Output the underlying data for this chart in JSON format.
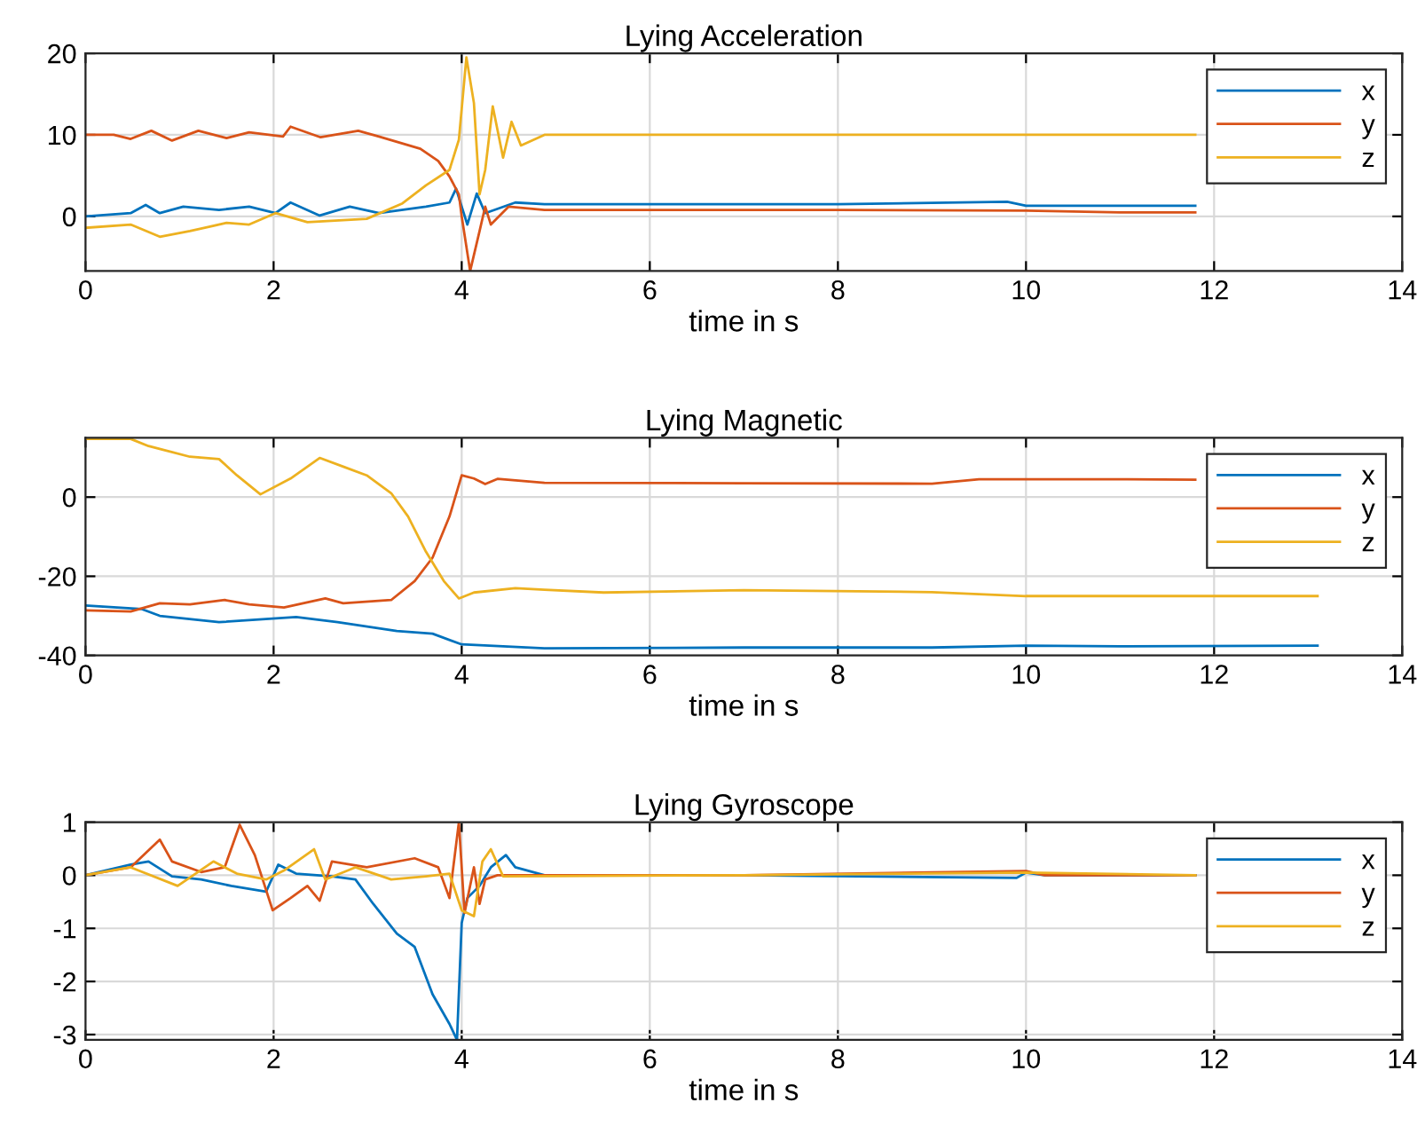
{
  "chart_data": [
    {
      "type": "line",
      "title": "Lying Acceleration",
      "xlabel": "time in s",
      "xlim": [
        0,
        14
      ],
      "xticks": [
        0,
        2,
        4,
        6,
        8,
        10,
        12,
        14
      ],
      "ylim": [
        -6.7,
        20
      ],
      "yticks": [
        0,
        10,
        20
      ],
      "grid": true,
      "legend": "top right",
      "line_style": "solid",
      "marker": "none",
      "series": [
        {
          "name": "x",
          "color": "#0072bd",
          "x": [
            0,
            0.48,
            0.64,
            0.79,
            1.04,
            1.42,
            1.74,
            2.02,
            2.18,
            2.49,
            2.81,
            3.12,
            3.62,
            3.87,
            3.94,
            4.06,
            4.16,
            4.25,
            4.57,
            4.88,
            6,
            8,
            9.8,
            10,
            11,
            11.8
          ],
          "values": [
            0,
            0.4,
            1.4,
            0.4,
            1.2,
            0.8,
            1.2,
            0.4,
            1.7,
            0.1,
            1.2,
            0.4,
            1.2,
            1.7,
            3.4,
            -1,
            2.8,
            0.4,
            1.7,
            1.5,
            1.5,
            1.5,
            1.8,
            1.3,
            1.3,
            1.3
          ]
        },
        {
          "name": "y",
          "color": "#d95319",
          "x": [
            0,
            0.3,
            0.48,
            0.7,
            0.92,
            1.2,
            1.5,
            1.74,
            2.1,
            2.18,
            2.5,
            2.9,
            3.12,
            3.56,
            3.75,
            3.87,
            3.97,
            4.0,
            4.09,
            4.19,
            4.25,
            4.31,
            4.5,
            4.88,
            6,
            8,
            10,
            11,
            11.8
          ],
          "values": [
            10,
            10,
            9.5,
            10.5,
            9.3,
            10.5,
            9.6,
            10.3,
            9.8,
            11,
            9.7,
            10.5,
            9.8,
            8.3,
            6.8,
            4.9,
            2.7,
            0,
            -6.7,
            -1.8,
            1.2,
            -1,
            1.2,
            0.8,
            0.8,
            0.8,
            0.7,
            0.5,
            0.5
          ]
        },
        {
          "name": "z",
          "color": "#edb120",
          "x": [
            0,
            0.48,
            0.79,
            1.11,
            1.5,
            1.74,
            2.02,
            2.36,
            2.99,
            3.37,
            3.62,
            3.87,
            3.97,
            4.05,
            4.13,
            4.19,
            4.25,
            4.33,
            4.44,
            4.53,
            4.63,
            4.88,
            6,
            8,
            10,
            11.8
          ],
          "values": [
            -1.4,
            -1,
            -2.5,
            -1.8,
            -0.8,
            -1,
            0.4,
            -0.7,
            -0.3,
            1.6,
            3.8,
            5.7,
            9.4,
            19.5,
            13.9,
            2.7,
            5.7,
            13.5,
            7.2,
            11.6,
            8.7,
            10,
            10,
            10,
            10,
            10
          ]
        }
      ]
    },
    {
      "type": "line",
      "title": "Lying Magnetic",
      "xlabel": "time in s",
      "xlim": [
        0,
        14
      ],
      "xticks": [
        0,
        2,
        4,
        6,
        8,
        10,
        12,
        14
      ],
      "ylim": [
        -40,
        15
      ],
      "yticks": [
        -40,
        -20,
        0
      ],
      "grid": true,
      "legend": "top right",
      "line_style": "solid",
      "marker": "none",
      "series": [
        {
          "name": "x",
          "color": "#0072bd",
          "x": [
            0,
            0.6,
            0.79,
            1.42,
            2.24,
            2.68,
            3.31,
            3.69,
            4.0,
            4.88,
            7,
            9,
            10,
            11,
            13.1
          ],
          "values": [
            -27.4,
            -28.3,
            -30,
            -31.6,
            -30.3,
            -31.6,
            -33.8,
            -34.5,
            -37.2,
            -38.2,
            -38,
            -38,
            -37.5,
            -37.7,
            -37.5
          ]
        },
        {
          "name": "y",
          "color": "#d95319",
          "x": [
            0,
            0.48,
            0.79,
            1.11,
            1.48,
            1.74,
            2.11,
            2.55,
            2.74,
            3.25,
            3.5,
            3.69,
            3.87,
            4.0,
            4.13,
            4.25,
            4.38,
            4.88,
            7,
            9,
            9.5,
            11,
            11.8
          ],
          "values": [
            -28.6,
            -28.9,
            -26.8,
            -27.1,
            -26,
            -27.1,
            -27.9,
            -25.6,
            -26.8,
            -26,
            -21.2,
            -15.3,
            -4.9,
            5.5,
            4.7,
            3.3,
            4.6,
            3.6,
            3.5,
            3.4,
            4.5,
            4.5,
            4.4
          ]
        },
        {
          "name": "z",
          "color": "#edb120",
          "x": [
            0,
            0.48,
            0.67,
            1.11,
            1.42,
            1.61,
            1.86,
            2.18,
            2.49,
            2.74,
            2.99,
            3.25,
            3.43,
            3.62,
            3.81,
            3.97,
            4.13,
            4.57,
            4.88,
            5.51,
            7,
            9,
            10,
            11,
            13.1
          ],
          "values": [
            14.7,
            14.7,
            12.9,
            10.2,
            9.6,
            5.5,
            0.7,
            4.7,
            9.9,
            7.7,
            5.5,
            1,
            -4.9,
            -13.8,
            -21.2,
            -25.6,
            -24.1,
            -23,
            -23.4,
            -24.1,
            -23.5,
            -24,
            -25,
            -25,
            -25
          ]
        }
      ]
    },
    {
      "type": "line",
      "title": "Lying Gyroscope",
      "xlabel": "time in s",
      "xlim": [
        0,
        14
      ],
      "xticks": [
        0,
        2,
        4,
        6,
        8,
        10,
        12,
        14
      ],
      "ylim": [
        -3.1,
        1
      ],
      "yticks": [
        -3,
        -2,
        -1,
        0,
        1
      ],
      "grid": true,
      "legend": "top right",
      "line_style": "solid",
      "marker": "none",
      "series": [
        {
          "name": "x",
          "color": "#0072bd",
          "x": [
            0,
            0.48,
            0.67,
            0.92,
            1.23,
            1.55,
            1.92,
            2.05,
            2.24,
            2.62,
            2.87,
            3.06,
            3.31,
            3.5,
            3.69,
            3.87,
            3.95,
            4.0,
            4.06,
            4.19,
            4.31,
            4.47,
            4.57,
            4.88,
            7,
            9.9,
            10,
            10.2,
            11.8
          ],
          "values": [
            0,
            0.2,
            0.26,
            -0.02,
            -0.08,
            -0.2,
            -0.31,
            0.2,
            0.03,
            -0.02,
            -0.08,
            -0.54,
            -1.1,
            -1.35,
            -2.24,
            -2.8,
            -3.1,
            -0.9,
            -0.43,
            -0.2,
            0.15,
            0.38,
            0.15,
            0,
            0,
            -0.05,
            0.05,
            0,
            0
          ]
        },
        {
          "name": "y",
          "color": "#d95319",
          "x": [
            0,
            0.48,
            0.79,
            0.92,
            1.23,
            1.48,
            1.64,
            1.8,
            1.99,
            2.18,
            2.36,
            2.49,
            2.62,
            2.99,
            3.5,
            3.75,
            3.87,
            3.97,
            4.03,
            4.13,
            4.19,
            4.25,
            4.38,
            7,
            10,
            10.2,
            11.8
          ],
          "values": [
            0,
            0.15,
            0.67,
            0.26,
            0.06,
            0.15,
            0.95,
            0.38,
            -0.66,
            -0.43,
            -0.2,
            -0.48,
            0.26,
            0.15,
            0.32,
            0.15,
            -0.43,
            1.0,
            -0.71,
            0.15,
            -0.54,
            -0.08,
            0,
            0,
            0.08,
            0,
            0
          ]
        },
        {
          "name": "z",
          "color": "#edb120",
          "x": [
            0,
            0.48,
            0.98,
            1.36,
            1.61,
            1.92,
            2.11,
            2.43,
            2.55,
            2.87,
            3.25,
            3.62,
            3.87,
            4.0,
            4.13,
            4.22,
            4.31,
            4.44,
            7,
            10,
            11.8
          ],
          "values": [
            0,
            0.15,
            -0.2,
            0.26,
            0.03,
            -0.08,
            0.09,
            0.49,
            -0.08,
            0.15,
            -0.08,
            -0.02,
            0.03,
            -0.66,
            -0.77,
            0.26,
            0.49,
            -0.02,
            0,
            0.05,
            0
          ]
        }
      ]
    }
  ]
}
